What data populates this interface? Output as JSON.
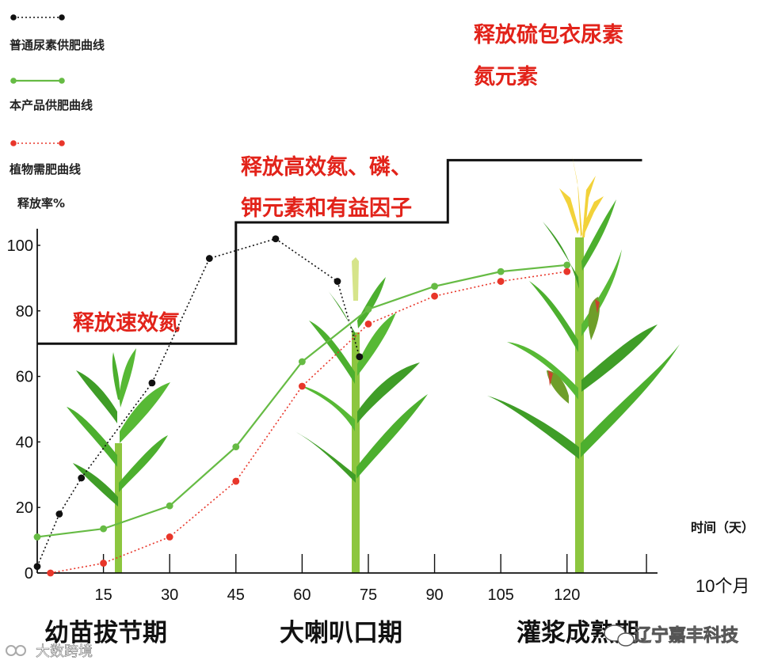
{
  "legend": {
    "black_label": "普通尿素供肥曲线",
    "green_label": "本产品供肥曲线",
    "red_label": "植物需肥曲线",
    "y_title": "释放率%"
  },
  "phases": [
    {
      "label": "释放速效氮",
      "level": 70,
      "x_end": 45
    },
    {
      "label_line1": "释放高效氮、磷、",
      "label_line2": "钾元素和有益因子",
      "level": 107,
      "x_end": 93
    },
    {
      "label_line1": "释放硫包衣尿素",
      "label_line2": "氮元素",
      "level": 126
    }
  ],
  "stages": {
    "stage1": "幼苗拔节期",
    "stage2": "大喇叭口期",
    "stage3": "灌浆成熟期"
  },
  "axis": {
    "x_title": "时间（天）",
    "duration": "10个月"
  },
  "watermark": {
    "left": "大数跨境",
    "right": "辽宁嘉丰科技"
  },
  "colors": {
    "black_series": "#111111",
    "green_series": "#66bb44",
    "red_series": "#e8362a",
    "phase_line": "#111111",
    "red_text": "#e2231a",
    "plant_leaf": "#4caf2e",
    "plant_stem": "#8cc63f",
    "tassel": "#f2d23a"
  },
  "chart_data": {
    "type": "line",
    "x_ticks": [
      15,
      30,
      45,
      60,
      75,
      90,
      105,
      120
    ],
    "y_ticks": [
      0,
      20,
      40,
      60,
      80,
      100
    ],
    "xlim": [
      0,
      138
    ],
    "ylim": [
      0,
      130
    ],
    "grid": false,
    "legend_position": "top-left",
    "series": [
      {
        "name": "普通尿素供肥曲线",
        "style": "dotted",
        "color": "#111111",
        "points": [
          [
            0,
            2
          ],
          [
            5,
            18
          ],
          [
            10,
            29
          ],
          [
            26,
            58
          ],
          [
            39,
            96
          ],
          [
            54,
            102
          ],
          [
            68,
            89
          ],
          [
            73,
            66
          ]
        ]
      },
      {
        "name": "本产品供肥曲线",
        "style": "solid",
        "color": "#66bb44",
        "points": [
          [
            0,
            11
          ],
          [
            15,
            13.5
          ],
          [
            30,
            20.5
          ],
          [
            45,
            38.5
          ],
          [
            60,
            64.5
          ],
          [
            75,
            80.5
          ],
          [
            90,
            87.5
          ],
          [
            105,
            92
          ],
          [
            120,
            94
          ]
        ]
      },
      {
        "name": "植物需肥曲线",
        "style": "dotted",
        "color": "#e8362a",
        "points": [
          [
            3,
            0
          ],
          [
            15,
            3
          ],
          [
            30,
            11
          ],
          [
            45,
            28
          ],
          [
            60,
            57
          ],
          [
            75,
            76
          ],
          [
            90,
            84.5
          ],
          [
            105,
            89
          ],
          [
            120,
            92
          ]
        ]
      }
    ]
  }
}
